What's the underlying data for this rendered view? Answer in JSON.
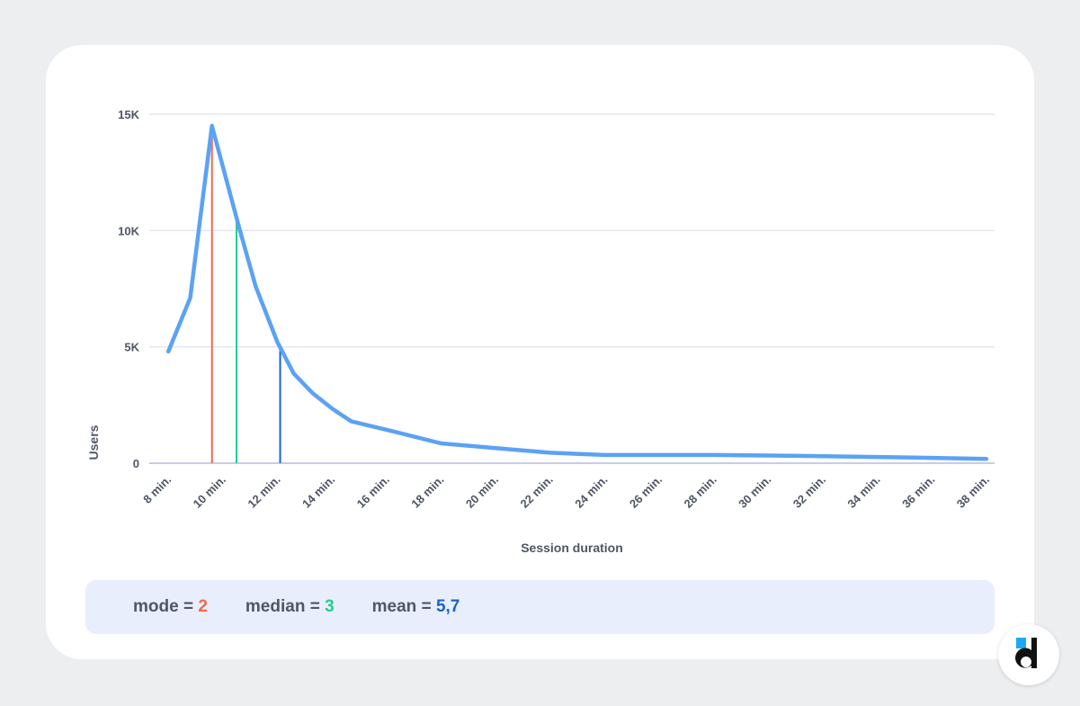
{
  "chart_data": {
    "type": "line",
    "xlabel": "Session duration",
    "ylabel": "Users",
    "ylim": [
      0,
      15000
    ],
    "yticks": [
      0,
      5000,
      10000,
      15000
    ],
    "ytick_labels": [
      "0",
      "5K",
      "10K",
      "15K"
    ],
    "x_tick_labels": [
      "8 min.",
      "10 min.",
      "12 min.",
      "14 min.",
      "16 min.",
      "18 min.",
      "20 min.",
      "22 min.",
      "24 min.",
      "26 min.",
      "28 min.",
      "30 min.",
      "32 min.",
      "34 min.",
      "36 min.",
      "38 min."
    ],
    "x_tick_values": [
      8,
      10,
      12,
      14,
      16,
      18,
      20,
      22,
      24,
      26,
      28,
      30,
      32,
      34,
      36,
      38
    ],
    "xlim": [
      7.3,
      38.3
    ],
    "grid": true,
    "series": [
      {
        "color": "#5ba2f5",
        "x": [
          8.0,
          8.8,
          9.6,
          10.6,
          11.2,
          12.0,
          12.6,
          13.3,
          14.0,
          14.7,
          16.3,
          18.0,
          20.0,
          22.0,
          24.0,
          28.0,
          32.0,
          36.0,
          38.0
        ],
        "y": [
          4800,
          7100,
          14500,
          10100,
          7600,
          5200,
          3850,
          3000,
          2350,
          1800,
          1350,
          850,
          650,
          450,
          350,
          350,
          300,
          230,
          180
        ]
      }
    ],
    "markers": [
      {
        "name": "mode",
        "x": 9.6,
        "y": 14500,
        "color": "#f26a4b"
      },
      {
        "name": "median",
        "x": 10.5,
        "y": 10600,
        "color": "#1fcf8c"
      },
      {
        "name": "mean",
        "x": 12.1,
        "y": 4900,
        "color": "#1a63c9"
      }
    ]
  },
  "stats": [
    {
      "label": "mode = ",
      "value": "2",
      "color": "#f26a4b"
    },
    {
      "label": "median = ",
      "value": "3",
      "color": "#1fcf8c"
    },
    {
      "label": "mean = ",
      "value": "5,7",
      "color": "#1a63c9"
    }
  ],
  "logo": {
    "name": "devtodev-logo",
    "accent": "#1fa9f5"
  }
}
